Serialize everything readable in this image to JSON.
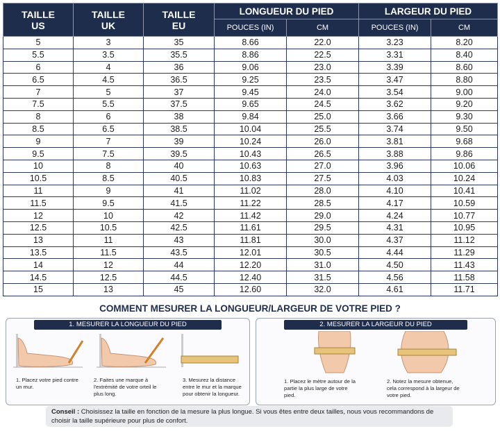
{
  "table": {
    "headers": {
      "us": "TAILLE US",
      "uk": "TAILLE UK",
      "eu": "TAILLE EU",
      "length": "LONGUEUR DU PIED",
      "width": "LARGEUR DU PIED",
      "length_in": "POUCES (IN)",
      "length_cm": "CM",
      "width_in": "POUCES (IN)",
      "width_cm": "CM"
    },
    "rows": [
      [
        "5",
        "3",
        "35",
        "8.66",
        "22.0",
        "3.23",
        "8.20"
      ],
      [
        "5.5",
        "3.5",
        "35.5",
        "8.86",
        "22.5",
        "3.31",
        "8.40"
      ],
      [
        "6",
        "4",
        "36",
        "9.06",
        "23.0",
        "3.39",
        "8.60"
      ],
      [
        "6.5",
        "4.5",
        "36.5",
        "9.25",
        "23.5",
        "3.47",
        "8.80"
      ],
      [
        "7",
        "5",
        "37",
        "9.45",
        "24.0",
        "3.54",
        "9.00"
      ],
      [
        "7.5",
        "5.5",
        "37.5",
        "9.65",
        "24.5",
        "3.62",
        "9.20"
      ],
      [
        "8",
        "6",
        "38",
        "9.84",
        "25.0",
        "3.66",
        "9.30"
      ],
      [
        "8.5",
        "6.5",
        "38.5",
        "10.04",
        "25.5",
        "3.74",
        "9.50"
      ],
      [
        "9",
        "7",
        "39",
        "10.24",
        "26.0",
        "3.81",
        "9.68"
      ],
      [
        "9.5",
        "7.5",
        "39.5",
        "10.43",
        "26.5",
        "3.88",
        "9.86"
      ],
      [
        "10",
        "8",
        "40",
        "10.63",
        "27.0",
        "3.96",
        "10.06"
      ],
      [
        "10.5",
        "8.5",
        "40.5",
        "10.83",
        "27.5",
        "4.03",
        "10.24"
      ],
      [
        "11",
        "9",
        "41",
        "11.02",
        "28.0",
        "4.10",
        "10.41"
      ],
      [
        "11.5",
        "9.5",
        "41.5",
        "11.22",
        "28.5",
        "4.17",
        "10.59"
      ],
      [
        "12",
        "10",
        "42",
        "11.42",
        "29.0",
        "4.24",
        "10.77"
      ],
      [
        "12.5",
        "10.5",
        "42.5",
        "11.61",
        "29.5",
        "4.31",
        "10.95"
      ],
      [
        "13",
        "11",
        "43",
        "11.81",
        "30.0",
        "4.37",
        "11.12"
      ],
      [
        "13.5",
        "11.5",
        "43.5",
        "12.01",
        "30.5",
        "4.44",
        "11.29"
      ],
      [
        "14",
        "12",
        "44",
        "12.20",
        "31.0",
        "4.50",
        "11.43"
      ],
      [
        "14.5",
        "12.5",
        "44.5",
        "12.40",
        "31.5",
        "4.56",
        "11.58"
      ],
      [
        "15",
        "13",
        "45",
        "12.60",
        "32.0",
        "4.61",
        "11.71"
      ]
    ]
  },
  "guide": {
    "title": "COMMENT MESURER LA LONGUEUR/LARGEUR DE VOTRE PIED ?",
    "length": {
      "title": "1. MESURER LA LONGUEUR DU PIED",
      "steps": [
        "1. Placez votre pied contre un mur.",
        "2. Faites une marque à l'extrémité de votre orteil le plus long.",
        "3. Mesurez la distance entre le mur et la marque pour obtenir la longueur."
      ]
    },
    "width": {
      "title": "2. MESURER LA LARGEUR DU PIED",
      "steps": [
        "1. Placez le mètre autour de la partie la plus large de votre pied.",
        "2. Notez la mesure obtenue, cela correspond à la largeur de votre pied."
      ]
    }
  },
  "tip": {
    "label": "Conseil :",
    "text": "Choisissez la taille en fonction de la mesure la plus longue. Si vous êtes entre deux tailles, nous vous recommandons de choisir la taille supérieure pour plus de confort."
  }
}
